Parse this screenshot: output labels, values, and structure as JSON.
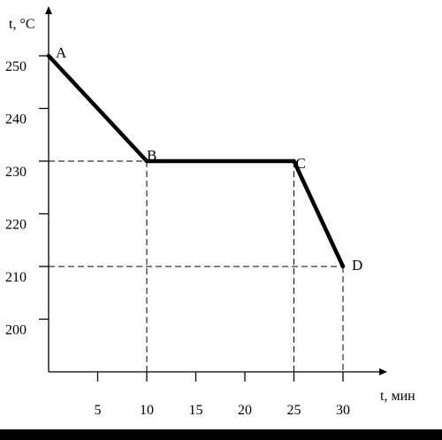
{
  "chart_data": {
    "type": "line",
    "xlabel": "t, мин",
    "ylabel": "t, °C",
    "xlim": [
      0,
      32
    ],
    "ylim": [
      190,
      258
    ],
    "x_ticks": [
      5,
      10,
      15,
      20,
      25,
      30
    ],
    "y_ticks": [
      200,
      210,
      220,
      230,
      240,
      250
    ],
    "x_tick_labels": [
      "5",
      "10",
      "15",
      "20",
      "25",
      "30"
    ],
    "y_tick_labels": [
      "200",
      "210",
      "220",
      "230",
      "240",
      "250"
    ],
    "grid": false,
    "series": [
      {
        "points": [
          {
            "label": "A",
            "x": 0,
            "y": 250
          },
          {
            "label": "B",
            "x": 10,
            "y": 230
          },
          {
            "label": "C",
            "x": 25,
            "y": 230
          },
          {
            "label": "D",
            "x": 30,
            "y": 210
          }
        ]
      }
    ],
    "guides": [
      {
        "from": "B",
        "style": "dashed"
      },
      {
        "from": "C",
        "style": "dashed"
      },
      {
        "from": "D",
        "style": "dashed"
      }
    ],
    "colors": {
      "line": "#000000",
      "axis": "#000000",
      "background": "#ffffff"
    }
  }
}
